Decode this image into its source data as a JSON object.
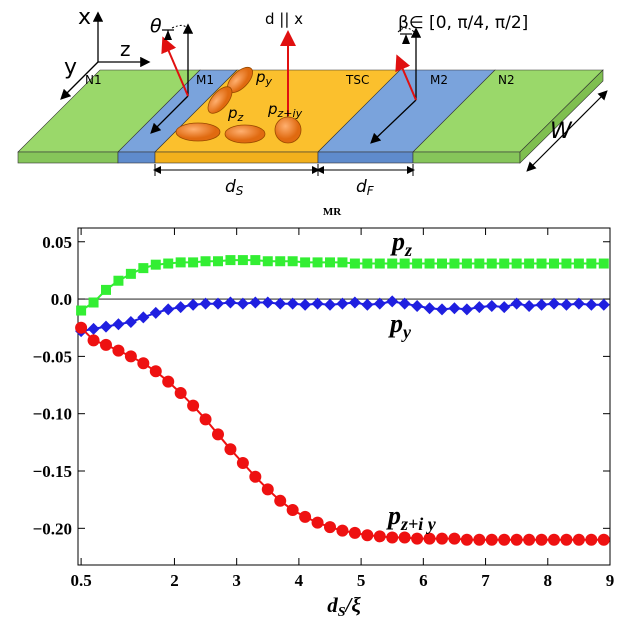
{
  "diagram": {
    "axis_x": "x",
    "axis_y": "y",
    "axis_z": "z",
    "theta": "θ",
    "d_label": "d || x",
    "beta": "β∈ [0, π/4, π/2]",
    "n1": "N1",
    "m1": "M1",
    "tsc": "TSC",
    "m2": "M2",
    "n2": "N2",
    "w": "W",
    "ds": {
      "base": "d",
      "sub": "S"
    },
    "df": {
      "base": "d",
      "sub": "F"
    },
    "py": {
      "base": "p",
      "sub": "y"
    },
    "pz": {
      "base": "p",
      "sub": "z"
    },
    "pziy": {
      "base": "p",
      "sub": "z+iy"
    }
  },
  "chart_data": {
    "type": "line",
    "title": "MR",
    "x_label": {
      "base": "d",
      "sub": "S",
      "rest": "/ξ"
    },
    "x": [
      0.5,
      0.7,
      0.9,
      1.1,
      1.3,
      1.5,
      1.7,
      1.9,
      2.1,
      2.3,
      2.5,
      2.7,
      2.9,
      3.1,
      3.3,
      3.5,
      3.7,
      3.9,
      4.1,
      4.3,
      4.5,
      4.7,
      4.9,
      5.1,
      5.3,
      5.5,
      5.7,
      5.9,
      6.1,
      6.3,
      6.5,
      6.7,
      6.9,
      7.1,
      7.3,
      7.5,
      7.7,
      7.9,
      8.1,
      8.3,
      8.5,
      8.7,
      8.9
    ],
    "series": [
      {
        "name": {
          "base": "p",
          "sub": "z"
        },
        "color": "#33ee33",
        "marker": "square",
        "values": [
          -0.01,
          -0.003,
          0.008,
          0.016,
          0.022,
          0.027,
          0.03,
          0.031,
          0.032,
          0.032,
          0.033,
          0.033,
          0.034,
          0.034,
          0.034,
          0.033,
          0.033,
          0.033,
          0.032,
          0.032,
          0.032,
          0.032,
          0.031,
          0.031,
          0.031,
          0.031,
          0.031,
          0.031,
          0.031,
          0.031,
          0.031,
          0.031,
          0.031,
          0.031,
          0.031,
          0.031,
          0.031,
          0.031,
          0.031,
          0.031,
          0.031,
          0.031,
          0.031
        ]
      },
      {
        "name": {
          "base": "p",
          "sub": "y"
        },
        "color": "#1f1fe0",
        "marker": "diamond",
        "values": [
          -0.028,
          -0.026,
          -0.024,
          -0.022,
          -0.02,
          -0.016,
          -0.012,
          -0.009,
          -0.007,
          -0.005,
          -0.004,
          -0.004,
          -0.003,
          -0.004,
          -0.003,
          -0.003,
          -0.004,
          -0.004,
          -0.005,
          -0.004,
          -0.005,
          -0.004,
          -0.003,
          -0.005,
          -0.004,
          -0.002,
          -0.004,
          -0.006,
          -0.008,
          -0.009,
          -0.008,
          -0.009,
          -0.007,
          -0.006,
          -0.007,
          -0.004,
          -0.006,
          -0.005,
          -0.004,
          -0.005,
          -0.004,
          -0.005,
          -0.005
        ]
      },
      {
        "name": {
          "base": "p",
          "sub": "z+i y"
        },
        "color": "#ee1111",
        "marker": "circle",
        "values": [
          -0.025,
          -0.036,
          -0.04,
          -0.045,
          -0.05,
          -0.056,
          -0.063,
          -0.072,
          -0.082,
          -0.093,
          -0.105,
          -0.118,
          -0.131,
          -0.143,
          -0.155,
          -0.166,
          -0.176,
          -0.184,
          -0.19,
          -0.195,
          -0.199,
          -0.202,
          -0.204,
          -0.206,
          -0.207,
          -0.208,
          -0.208,
          -0.209,
          -0.209,
          -0.209,
          -0.209,
          -0.21,
          -0.21,
          -0.21,
          -0.21,
          -0.21,
          -0.21,
          -0.21,
          -0.21,
          -0.21,
          -0.21,
          -0.21,
          -0.21
        ]
      }
    ],
    "xlim": [
      0.45,
      9.0
    ],
    "xticks": [
      0.5,
      2,
      3,
      4,
      5,
      6,
      7,
      8,
      9
    ],
    "ylim": [
      -0.232,
      0.062
    ],
    "yticks": [
      0.05,
      {
        "value": 0,
        "label": "0.0"
      },
      {
        "value": -0.05,
        "label": "−0.05"
      },
      {
        "value": -0.1,
        "label": "−0.10"
      },
      {
        "value": -0.15,
        "label": "−0.15"
      },
      {
        "value": -0.2,
        "label": "−0.20"
      }
    ],
    "zero_line": true
  }
}
